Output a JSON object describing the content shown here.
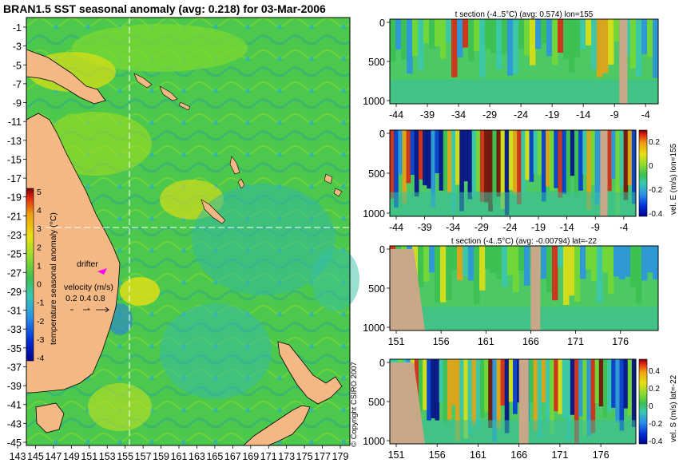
{
  "main_map": {
    "title": "BRAN1.5 SST seasonal anomaly (avg: 0.218) for 03-Mar-2006",
    "lat_ticks": [
      "-1",
      "-3",
      "-5",
      "-7",
      "-9",
      "-11",
      "-13",
      "-15",
      "-17",
      "-19",
      "-21",
      "-23",
      "-25",
      "-27",
      "-29",
      "-31",
      "-33",
      "-35",
      "-37",
      "-39",
      "-41",
      "-43",
      "-45"
    ],
    "lon_ticks": [
      "143",
      "145",
      "147",
      "149",
      "151",
      "153",
      "155",
      "157",
      "159",
      "161",
      "163",
      "165",
      "167",
      "169",
      "171",
      "173",
      "175",
      "177",
      "179"
    ],
    "colorbar": {
      "label": "temperature seasonal anomaly (°C)",
      "ticks": [
        "5",
        "4",
        "3",
        "2",
        "1",
        "0",
        "-1",
        "-2",
        "-3",
        "-4"
      ]
    },
    "drifter_label": "drifter",
    "velocity_legend": {
      "title": "velocity (m/s)",
      "scale": "0.2 0.4 0.8"
    },
    "copyright": "© Copyright CSIRO 2007"
  },
  "panels": [
    {
      "title": "t section (-4..5°C) (avg: 0.574) lon=155",
      "y_ticks": [
        "0",
        "500",
        "1000"
      ],
      "x_ticks": [
        "-44",
        "-39",
        "-34",
        "-29",
        "-24",
        "-19",
        "-14",
        "-9",
        "-4"
      ],
      "colorbar": null
    },
    {
      "title": "",
      "y_ticks": [
        "0",
        "500",
        "1000"
      ],
      "x_ticks": [
        "-44",
        "-39",
        "-34",
        "-29",
        "-24",
        "-19",
        "-14",
        "-9",
        "-4"
      ],
      "colorbar": {
        "label": "vel. E (m/s) lon=155",
        "ticks": [
          "0.2",
          "0",
          "-0.2",
          "-0.4"
        ]
      }
    },
    {
      "title": "t section (-4..5°C) (avg: -0.00794) lat=-22",
      "y_ticks": [
        "0",
        "500",
        "1000"
      ],
      "x_ticks": [
        "151",
        "156",
        "161",
        "166",
        "171",
        "176"
      ],
      "colorbar": null
    },
    {
      "title": "",
      "y_ticks": [
        "0",
        "500",
        "1000"
      ],
      "x_ticks": [
        "151",
        "156",
        "161",
        "166",
        "171",
        "176"
      ],
      "colorbar": {
        "label": "vel. S (m/s) lat=-22",
        "ticks": [
          "0.4",
          "0.2",
          "0",
          "-0.2",
          "-0.4"
        ]
      }
    }
  ],
  "colors": {
    "land": "#f4b884",
    "section_land": "#c8a888",
    "anomaly_scale": [
      "#00008c",
      "#0030d8",
      "#2a90e8",
      "#39c8b0",
      "#3cc050",
      "#78d830",
      "#e8e010",
      "#f0a010",
      "#e02010",
      "#7a0000"
    ],
    "drifter": "#ff00ff"
  }
}
